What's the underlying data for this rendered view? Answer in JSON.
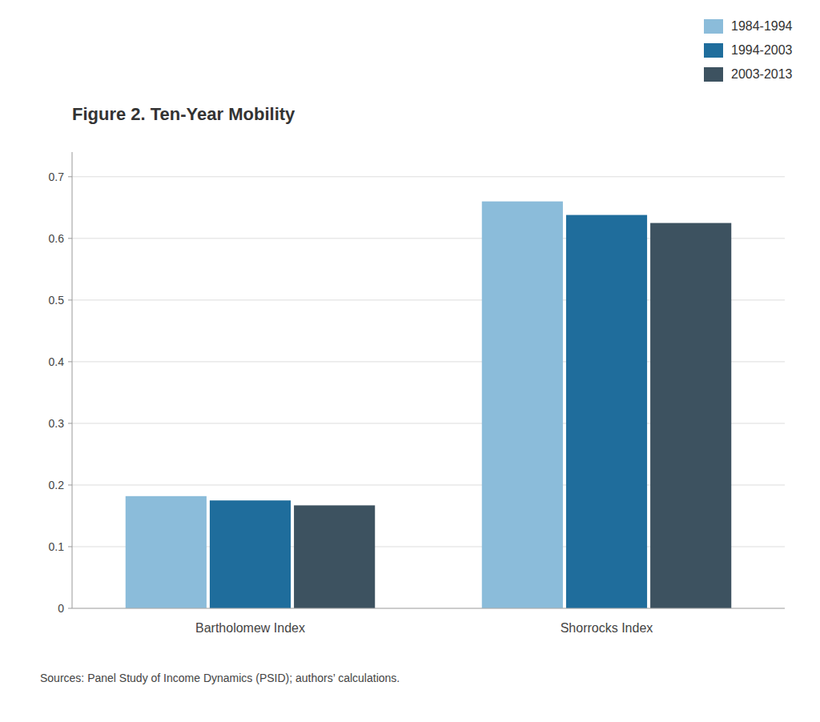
{
  "chart_data": {
    "type": "bar",
    "title": "Figure 2. Ten-Year Mobility",
    "categories": [
      "Bartholomew Index",
      "Shorrocks Index"
    ],
    "series": [
      {
        "name": "1984-1994",
        "color": "#8bbcda",
        "values": [
          0.182,
          0.66
        ]
      },
      {
        "name": "1994-2003",
        "color": "#1f6d9c",
        "values": [
          0.175,
          0.638
        ]
      },
      {
        "name": "2003-2013",
        "color": "#3d5260",
        "values": [
          0.167,
          0.625
        ]
      }
    ],
    "ylim": [
      0,
      0.74
    ],
    "yticks": [
      0,
      0.1,
      0.2,
      0.3,
      0.4,
      0.5,
      0.6,
      0.7
    ],
    "grid": true,
    "legend": "upper right",
    "annotations": [
      "Sources: Panel Study of Income Dynamics (PSID); authors’ calculations."
    ]
  }
}
